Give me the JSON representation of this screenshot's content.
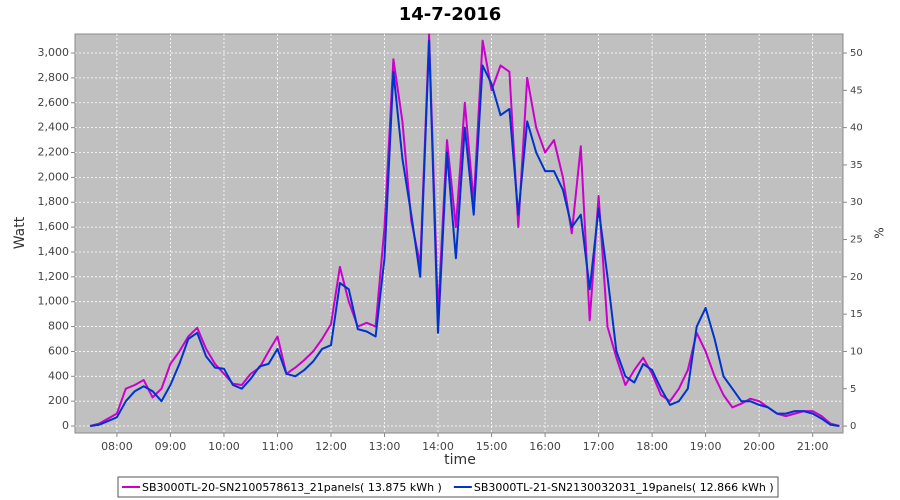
{
  "chart_data": {
    "type": "line",
    "title": "14-7-2016",
    "xlabel": "time",
    "ylabel": "Watt",
    "y2label": "%",
    "x": [
      450,
      460,
      470,
      480,
      490,
      500,
      510,
      520,
      530,
      540,
      550,
      560,
      570,
      580,
      590,
      600,
      610,
      620,
      630,
      640,
      650,
      660,
      670,
      680,
      690,
      700,
      710,
      720,
      730,
      740,
      750,
      760,
      770,
      780,
      790,
      800,
      810,
      820,
      830,
      840,
      850,
      860,
      870,
      880,
      890,
      900,
      910,
      920,
      930,
      940,
      950,
      960,
      970,
      980,
      990,
      1000,
      1010,
      1020,
      1030,
      1040,
      1050,
      1060,
      1070,
      1080,
      1090,
      1100,
      1110,
      1120,
      1130,
      1140,
      1150,
      1160,
      1170,
      1180,
      1190,
      1200,
      1210,
      1220,
      1230,
      1240,
      1250,
      1260,
      1270,
      1280,
      1290
    ],
    "series": [
      {
        "name": "SB3000TL-20-SN2100578613_21panels( 13.875 kWh )",
        "color": "#cc00cc",
        "values": [
          0,
          20,
          60,
          100,
          300,
          330,
          370,
          230,
          300,
          500,
          600,
          720,
          790,
          620,
          500,
          420,
          340,
          330,
          420,
          470,
          600,
          720,
          420,
          470,
          530,
          600,
          700,
          820,
          1280,
          1000,
          800,
          830,
          800,
          1600,
          2950,
          2450,
          1650,
          1300,
          3150,
          900,
          2300,
          1600,
          2600,
          1800,
          3100,
          2700,
          2900,
          2850,
          1600,
          2800,
          2400,
          2200,
          2300,
          2000,
          1550,
          2250,
          850,
          1850,
          800,
          550,
          330,
          450,
          550,
          420,
          250,
          200,
          300,
          450,
          750,
          600,
          400,
          250,
          150,
          180,
          220,
          200,
          150,
          100,
          80,
          100,
          120,
          120,
          80,
          20,
          0
        ]
      },
      {
        "name": "SB3000TL-21-SN2130032031_19panels( 12.866 kWh )",
        "color": "#0033cc",
        "values": [
          0,
          10,
          40,
          70,
          200,
          280,
          320,
          280,
          200,
          330,
          500,
          700,
          750,
          560,
          470,
          460,
          330,
          300,
          380,
          480,
          500,
          620,
          420,
          400,
          450,
          520,
          620,
          650,
          1150,
          1100,
          780,
          760,
          720,
          1350,
          2850,
          2150,
          1700,
          1200,
          3100,
          750,
          2200,
          1350,
          2400,
          1700,
          2900,
          2750,
          2500,
          2550,
          1700,
          2450,
          2200,
          2050,
          2050,
          1900,
          1600,
          1700,
          1100,
          1750,
          1200,
          600,
          400,
          350,
          500,
          450,
          300,
          170,
          200,
          300,
          800,
          950,
          700,
          400,
          300,
          200,
          200,
          170,
          150,
          100,
          100,
          120,
          120,
          100,
          60,
          10,
          0
        ]
      }
    ],
    "xlim": [
      433,
      1294
    ],
    "xticks": [
      {
        "value": 480,
        "label": "08:00"
      },
      {
        "value": 540,
        "label": "09:00"
      },
      {
        "value": 600,
        "label": "10:00"
      },
      {
        "value": 660,
        "label": "11:00"
      },
      {
        "value": 720,
        "label": "12:00"
      },
      {
        "value": 780,
        "label": "13:00"
      },
      {
        "value": 840,
        "label": "14:00"
      },
      {
        "value": 900,
        "label": "15:00"
      },
      {
        "value": 960,
        "label": "16:00"
      },
      {
        "value": 1020,
        "label": "17:00"
      },
      {
        "value": 1080,
        "label": "18:00"
      },
      {
        "value": 1140,
        "label": "19:00"
      },
      {
        "value": 1200,
        "label": "20:00"
      },
      {
        "value": 1260,
        "label": "21:00"
      }
    ],
    "ylim": [
      -56,
      3153
    ],
    "yticks": [
      0,
      200,
      400,
      600,
      800,
      {
        "value": 1000,
        "label": "1,000"
      },
      {
        "value": 1200,
        "label": "1,200"
      },
      {
        "value": 1400,
        "label": "1,400"
      },
      {
        "value": 1600,
        "label": "1,600"
      },
      {
        "value": 1800,
        "label": "1,800"
      },
      {
        "value": 2000,
        "label": "2,000"
      },
      {
        "value": 2200,
        "label": "2,200"
      },
      {
        "value": 2400,
        "label": "2,400"
      },
      {
        "value": 2600,
        "label": "2,600"
      },
      {
        "value": 2800,
        "label": "2,800"
      },
      {
        "value": 3000,
        "label": "3,000"
      }
    ],
    "y2lim": [
      -0.93,
      52.55
    ],
    "y2ticks": [
      0,
      5,
      10,
      15,
      20,
      25,
      30,
      35,
      40,
      45,
      50
    ],
    "grid": true
  }
}
